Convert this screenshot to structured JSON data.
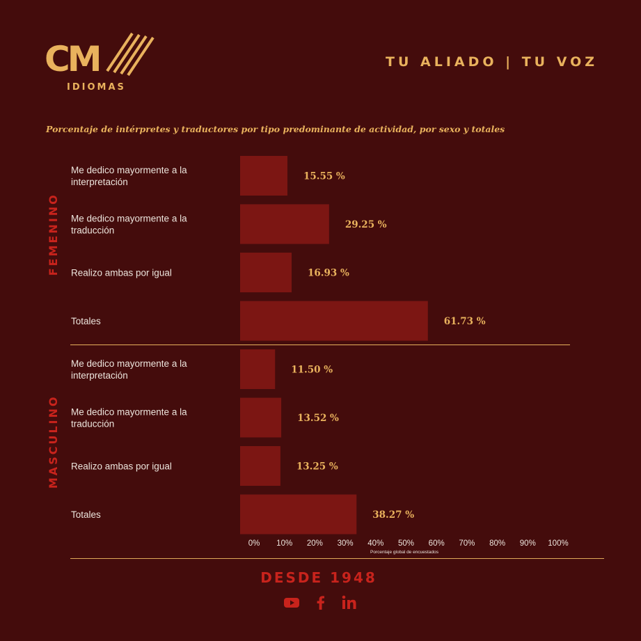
{
  "brand": {
    "logo_text": "CM",
    "logo_subtext": "IDIOMAS",
    "slogan": "TU ALIADO | TU VOZ"
  },
  "footer": {
    "since": "DESDE 1948",
    "social_icons": [
      "youtube-icon",
      "facebook-icon",
      "linkedin-icon"
    ]
  },
  "colors": {
    "background": "#440c0c",
    "bar": "#7c1613",
    "accent": "#e9b25d",
    "group_label": "#c8231c",
    "text": "#ece4dc"
  },
  "chart_data": {
    "type": "bar",
    "orientation": "horizontal",
    "title": "Porcentaje de intérpretes y traductores por tipo predominante de actividad, por sexo y totales",
    "xlabel": "Porcentaje global de encuestados",
    "xlim": [
      0,
      100
    ],
    "xticks": [
      "0%",
      "10%",
      "20%",
      "30%",
      "40%",
      "50%",
      "60%",
      "70%",
      "80%",
      "90%",
      "100%"
    ],
    "groups": [
      {
        "name": "FEMENINO",
        "items": [
          {
            "label": [
              "Me dedico mayormente a la",
              "interpretación"
            ],
            "value": 15.55,
            "value_label": "15.55 %"
          },
          {
            "label": [
              "Me dedico mayormente a la",
              "traducción"
            ],
            "value": 29.25,
            "value_label": "29.25 %"
          },
          {
            "label": [
              "Realizo ambas por igual"
            ],
            "value": 16.93,
            "value_label": "16.93 %"
          },
          {
            "label": [
              "Totales"
            ],
            "value": 61.73,
            "value_label": "61.73 %"
          }
        ]
      },
      {
        "name": "MASCULINO",
        "items": [
          {
            "label": [
              "Me dedico mayormente a la",
              "interpretación"
            ],
            "value": 11.5,
            "value_label": "11.50 %"
          },
          {
            "label": [
              "Me dedico mayormente a la",
              "traducción"
            ],
            "value": 13.52,
            "value_label": "13.52 %"
          },
          {
            "label": [
              "Realizo ambas por igual"
            ],
            "value": 13.25,
            "value_label": "13.25 %"
          },
          {
            "label": [
              "Totales"
            ],
            "value": 38.27,
            "value_label": "38.27 %"
          }
        ]
      }
    ]
  }
}
